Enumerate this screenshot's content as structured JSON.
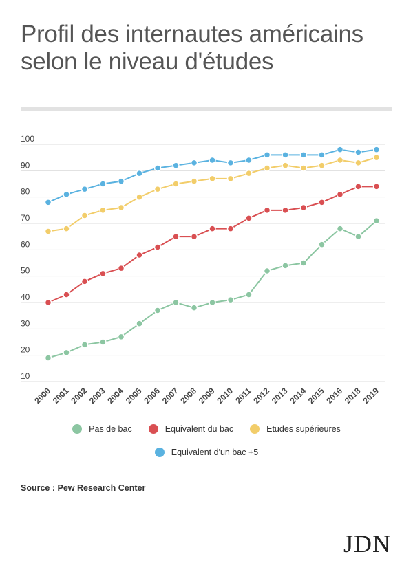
{
  "title": "Profil des internautes américains selon le niveau d'études",
  "source": "Source : Pew Research Center",
  "logo": "JDN",
  "chart_data": {
    "type": "line",
    "x": [
      "2000",
      "2001",
      "2002",
      "2003",
      "2004",
      "2005",
      "2006",
      "2007",
      "2008",
      "2009",
      "2010",
      "2011",
      "2012",
      "2013",
      "2014",
      "2015",
      "2016",
      "2018",
      "2019"
    ],
    "ylim": [
      10,
      100
    ],
    "yticks": [
      10,
      20,
      30,
      40,
      50,
      60,
      70,
      80,
      90,
      100
    ],
    "grid": true,
    "legend_position": "bottom",
    "series": [
      {
        "name": "Pas de bac",
        "color": "#8cc6a2",
        "values": [
          19,
          21,
          24,
          25,
          27,
          32,
          37,
          40,
          38,
          40,
          41,
          43,
          52,
          54,
          55,
          62,
          68,
          65,
          71
        ]
      },
      {
        "name": "Equivalent du bac",
        "color": "#d94f52",
        "values": [
          40,
          43,
          48,
          51,
          53,
          58,
          61,
          65,
          65,
          68,
          68,
          72,
          75,
          75,
          76,
          78,
          81,
          84,
          84
        ]
      },
      {
        "name": "Etudes supérieures",
        "color": "#f2cd6a",
        "values": [
          67,
          68,
          73,
          75,
          76,
          80,
          83,
          85,
          86,
          87,
          87,
          89,
          91,
          92,
          91,
          92,
          94,
          93,
          95
        ]
      },
      {
        "name": "Equivalent d'un bac +5",
        "color": "#5ab2e0",
        "values": [
          78,
          81,
          83,
          85,
          86,
          89,
          91,
          92,
          93,
          94,
          93,
          94,
          96,
          96,
          96,
          96,
          98,
          97,
          98
        ]
      }
    ]
  }
}
